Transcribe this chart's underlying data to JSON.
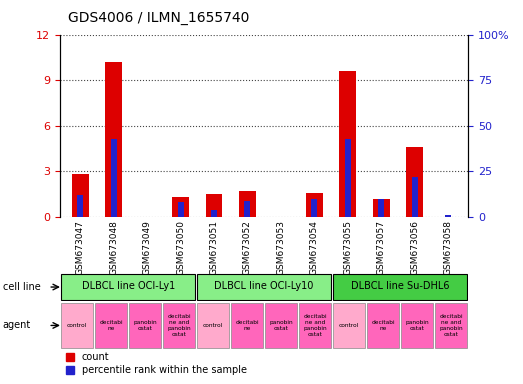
{
  "title": "GDS4006 / ILMN_1655740",
  "samples": [
    "GSM673047",
    "GSM673048",
    "GSM673049",
    "GSM673050",
    "GSM673051",
    "GSM673052",
    "GSM673053",
    "GSM673054",
    "GSM673055",
    "GSM673057",
    "GSM673056",
    "GSM673058"
  ],
  "count_values": [
    2.8,
    10.2,
    0.0,
    1.3,
    1.5,
    1.7,
    0.0,
    1.6,
    9.6,
    1.2,
    4.6,
    0.0
  ],
  "percentile_values": [
    12,
    43,
    0,
    8,
    4,
    9,
    0,
    10,
    43,
    10,
    22,
    1
  ],
  "ylim_left": [
    0,
    12
  ],
  "ylim_right": [
    0,
    100
  ],
  "yticks_left": [
    0,
    3,
    6,
    9,
    12
  ],
  "yticks_right": [
    0,
    25,
    50,
    75,
    100
  ],
  "count_color": "#DD0000",
  "percentile_color": "#2222CC",
  "grid_color": "#444444",
  "bg_color": "#FFFFFF",
  "left_tick_color": "#DD0000",
  "right_tick_color": "#2222CC",
  "xtick_bg_color": "#C8C8C8",
  "cell_line_groups": [
    {
      "label": "DLBCL line OCI-Ly1",
      "start": 0,
      "end": 4,
      "color": "#88EE88"
    },
    {
      "label": "DLBCL line OCI-Ly10",
      "start": 4,
      "end": 8,
      "color": "#88EE88"
    },
    {
      "label": "DLBCL line Su-DHL6",
      "start": 8,
      "end": 12,
      "color": "#44CC44"
    }
  ],
  "agents": [
    {
      "label": "control",
      "color": "#FFAACC"
    },
    {
      "label": "decitabi\nne",
      "color": "#FF66BB"
    },
    {
      "label": "panobin\nostat",
      "color": "#FF66BB"
    },
    {
      "label": "decitabi\nne and\npanobin\nostat",
      "color": "#FF66BB"
    },
    {
      "label": "control",
      "color": "#FFAACC"
    },
    {
      "label": "decitabi\nne",
      "color": "#FF66BB"
    },
    {
      "label": "panobin\nostat",
      "color": "#FF66BB"
    },
    {
      "label": "decitabi\nne and\npanobin\nostat",
      "color": "#FF66BB"
    },
    {
      "label": "control",
      "color": "#FFAACC"
    },
    {
      "label": "decitabi\nne",
      "color": "#FF66BB"
    },
    {
      "label": "panobin\nostat",
      "color": "#FF66BB"
    },
    {
      "label": "decitabi\nne and\npanobin\nostat",
      "color": "#FF66BB"
    }
  ]
}
